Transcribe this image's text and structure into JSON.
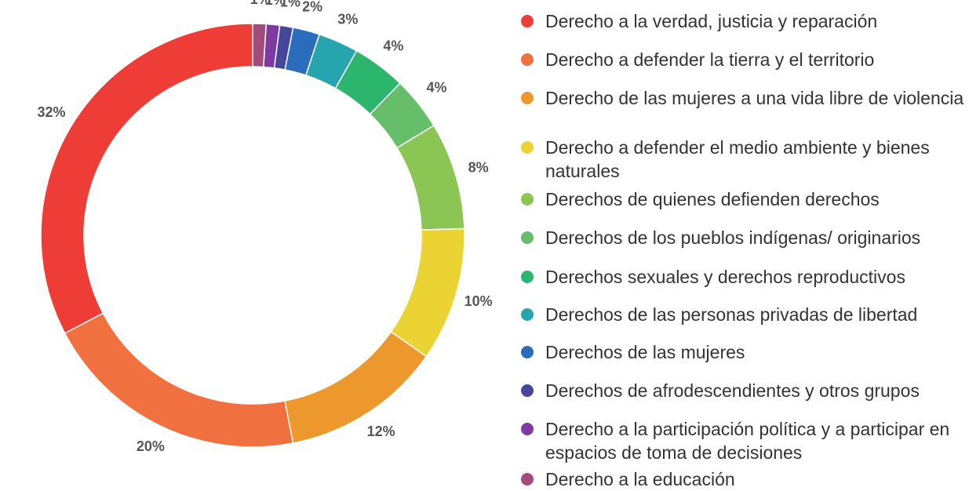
{
  "chart_data": {
    "type": "donut",
    "categories": [
      "Derecho a la verdad, justicia y reparación",
      "Derecho a defender la tierra y el territorio",
      "Derecho de las mujeres a una vida libre de violencia",
      "Derecho a defender el medio ambiente y bienes naturales",
      "Derechos de quienes defienden derechos",
      "Derechos de los pueblos indígenas/ originarios",
      "Derechos sexuales y derechos reproductivos",
      "Derechos de las personas privadas de libertad",
      "Derechos de las mujeres",
      "Derechos de afrodescendientes y otros grupos",
      "Derecho a la participación política y a participar en espacios de toma de decisiones",
      "Derecho a la educación"
    ],
    "values": [
      32,
      20,
      12,
      10,
      8,
      4,
      4,
      3,
      2,
      1,
      1,
      1
    ],
    "value_labels": [
      "32%",
      "20%",
      "12%",
      "10%",
      "8%",
      "4%",
      "4%",
      "3%",
      "2%",
      "1%",
      "1%",
      "1%"
    ],
    "colors": [
      "#ee3d36",
      "#f1703f",
      "#ec982c",
      "#ebd333",
      "#8bc654",
      "#66bd6a",
      "#2cb56c",
      "#27a5ae",
      "#2a6dbd",
      "#45479b",
      "#7d3aa1",
      "#a34c7c"
    ],
    "legend": "right"
  }
}
